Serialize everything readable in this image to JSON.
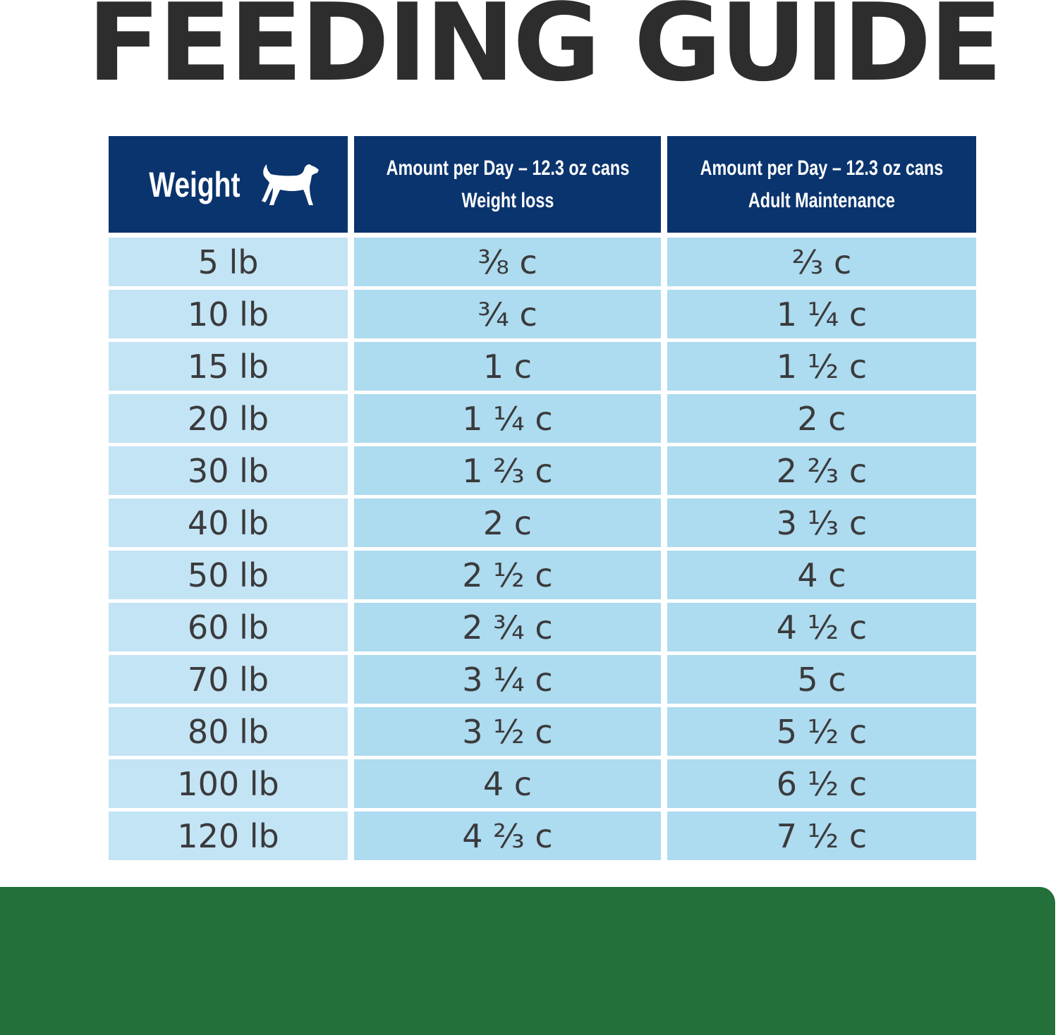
{
  "title": "FEEDING GUIDE",
  "header": {
    "weight": "Weight",
    "weight_icon": "dog-icon",
    "col2_line1": "Amount per Day – 12.3 oz cans",
    "col2_line2": "Weight loss",
    "col3_line1": "Amount per Day – 12.3 oz cans",
    "col3_line2": "Adult Maintenance"
  },
  "rows": [
    {
      "weight": "5 lb",
      "loss": "⅜ c",
      "maint": "⅔ c"
    },
    {
      "weight": "10 lb",
      "loss": "¾ c",
      "maint": "1 ¼ c"
    },
    {
      "weight": "15 lb",
      "loss": "1 c",
      "maint": "1 ½ c"
    },
    {
      "weight": "20 lb",
      "loss": "1 ¼ c",
      "maint": "2 c"
    },
    {
      "weight": "30 lb",
      "loss": "1 ⅔ c",
      "maint": "2 ⅔ c"
    },
    {
      "weight": "40 lb",
      "loss": "2 c",
      "maint": "3 ⅓ c"
    },
    {
      "weight": "50 lb",
      "loss": "2 ½ c",
      "maint": "4 c"
    },
    {
      "weight": "60 lb",
      "loss": "2 ¾ c",
      "maint": "4 ½ c"
    },
    {
      "weight": "70 lb",
      "loss": "3 ¼ c",
      "maint": "5 c"
    },
    {
      "weight": "80 lb",
      "loss": "3 ½ c",
      "maint": "5 ½ c"
    },
    {
      "weight": "100 lb",
      "loss": "4 c",
      "maint": "6 ½ c"
    },
    {
      "weight": "120 lb",
      "loss": "4 ⅔ c",
      "maint": "7 ½ c"
    }
  ],
  "colors": {
    "header_bg": "#0a346e",
    "weight_cell_bg": "#c3e4f4",
    "amount_cell_bg": "#addbef",
    "text": "#3a3a3c",
    "footer_band": "#23703a"
  }
}
